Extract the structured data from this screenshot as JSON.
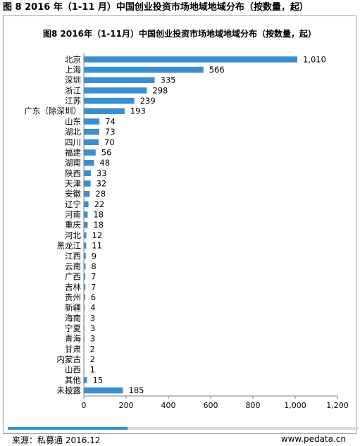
{
  "page_title": "图 8 2016 年（1-11 月）中国创业投资市场地域地域分布（按数量，起）",
  "chart_data": {
    "type": "bar",
    "orientation": "horizontal",
    "title": "图8 2016年（1-11月）中国创业投资市场地域地域分布（按数量，起）",
    "categories": [
      "北京",
      "上海",
      "深圳",
      "浙江",
      "江苏",
      "广东（除深圳）",
      "山东",
      "湖北",
      "四川",
      "福建",
      "湖南",
      "陕西",
      "天津",
      "安徽",
      "辽宁",
      "河南",
      "重庆",
      "河北",
      "黑龙江",
      "江西",
      "云南",
      "广西",
      "吉林",
      "贵州",
      "新疆",
      "海南",
      "宁夏",
      "青海",
      "甘肃",
      "内蒙古",
      "山西",
      "其他",
      "未披露"
    ],
    "values": [
      1010,
      566,
      335,
      298,
      239,
      193,
      74,
      73,
      70,
      56,
      48,
      33,
      32,
      28,
      22,
      18,
      18,
      12,
      11,
      9,
      8,
      7,
      7,
      6,
      4,
      3,
      3,
      3,
      2,
      2,
      1,
      15,
      185
    ],
    "value_labels": [
      "1,010",
      "566",
      "335",
      "298",
      "239",
      "193",
      "74",
      "73",
      "70",
      "56",
      "48",
      "33",
      "32",
      "28",
      "22",
      "18",
      "18",
      "12",
      "11",
      "9",
      "8",
      "7",
      "7",
      "6",
      "4",
      "3",
      "3",
      "3",
      "2",
      "2",
      "1",
      "15",
      "185"
    ],
    "xlim": [
      0,
      1200
    ],
    "xticks": [
      0,
      200,
      400,
      600,
      800,
      1000,
      1200
    ],
    "xtick_labels": [
      "0",
      "200",
      "400",
      "600",
      "800",
      "1,000",
      "1,200"
    ],
    "bar_color": "#3a8fd0",
    "grid": false,
    "legend": "none"
  },
  "footer": {
    "source": "来源：私募通 2016.12",
    "website": "www.pedata.cn",
    "accent_color": "#3a8fd0"
  }
}
